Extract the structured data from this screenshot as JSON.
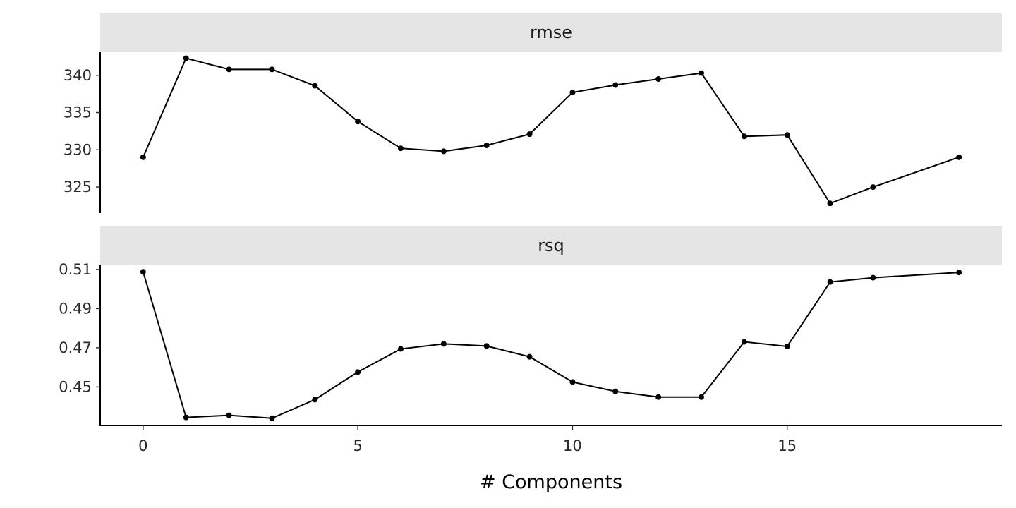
{
  "chart_data": {
    "type": "line",
    "xlabel": "# Components",
    "x": [
      0,
      1,
      2,
      3,
      4,
      5,
      6,
      7,
      8,
      9,
      10,
      11,
      12,
      13,
      14,
      15,
      16,
      17,
      19
    ],
    "xlim": [
      -1,
      20
    ],
    "x_ticks": [
      0,
      5,
      10,
      15
    ],
    "x_tick_labels": [
      "0",
      "5",
      "10",
      "15"
    ],
    "grid": false,
    "legend": "none",
    "facets": [
      {
        "strip": "rmse",
        "ylim": [
          321.5,
          343.2
        ],
        "y_ticks": [
          325,
          330,
          335,
          340
        ],
        "y_tick_labels": [
          "325",
          "330",
          "335",
          "340"
        ],
        "values": [
          329.0,
          342.3,
          340.8,
          340.8,
          338.6,
          333.8,
          330.2,
          329.8,
          330.6,
          332.1,
          337.7,
          338.7,
          339.5,
          340.3,
          331.8,
          332.0,
          322.8,
          325.0,
          329.0
        ]
      },
      {
        "strip": "rsq",
        "ylim": [
          0.4303,
          0.5125
        ],
        "y_ticks": [
          0.45,
          0.47,
          0.49,
          0.51
        ],
        "y_tick_labels": [
          "0.45",
          "0.47",
          "0.49",
          "0.51"
        ],
        "values": [
          0.5088,
          0.4344,
          0.4355,
          0.434,
          0.4435,
          0.4576,
          0.4694,
          0.472,
          0.4709,
          0.4654,
          0.4525,
          0.4477,
          0.4448,
          0.4448,
          0.473,
          0.4707,
          0.5036,
          0.5058,
          0.5085
        ]
      }
    ]
  }
}
